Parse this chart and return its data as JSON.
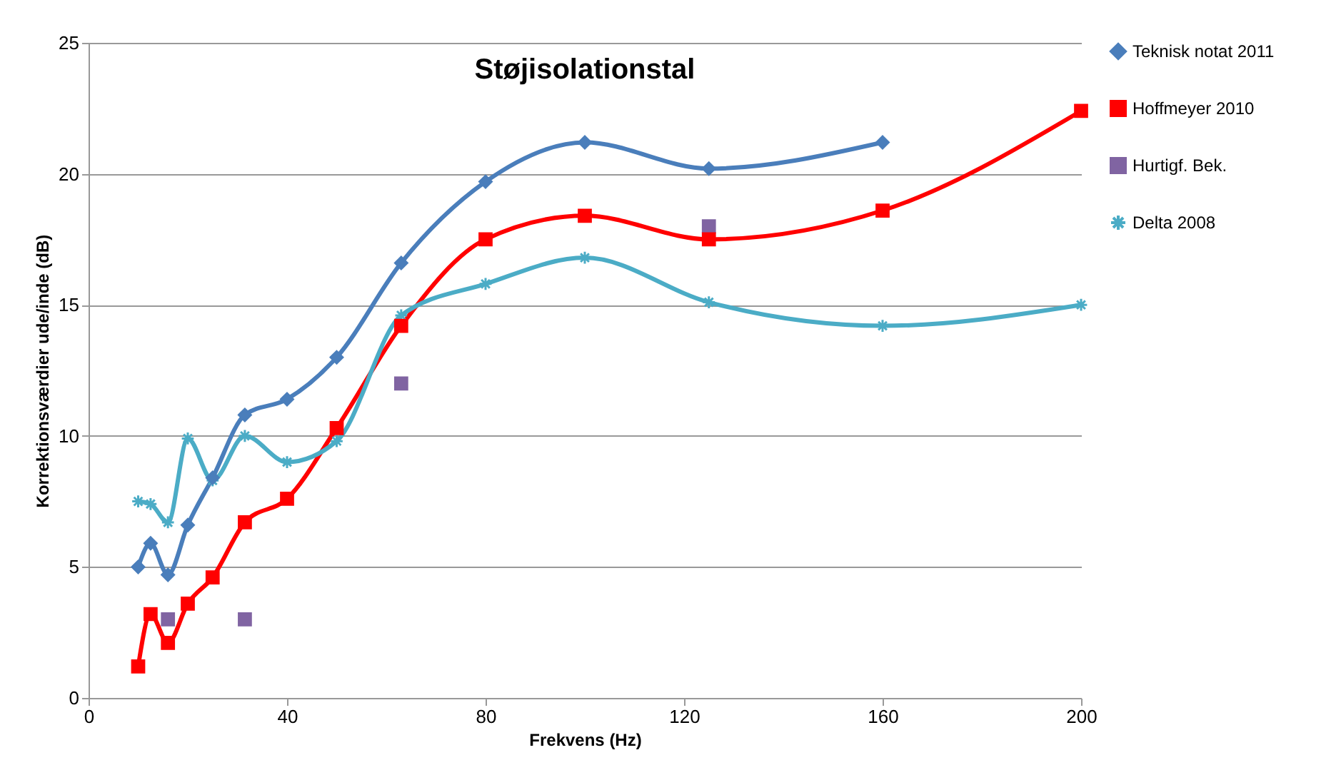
{
  "chart_data": {
    "type": "line",
    "title": "Støjisolationstal",
    "xlabel": "Frekvens (Hz)",
    "ylabel": "Korrektionsværdier ude/inde (dB)",
    "x": [
      10,
      12.5,
      16,
      20,
      25,
      31.5,
      40,
      50,
      63,
      80,
      100,
      125,
      160,
      200
    ],
    "series": [
      {
        "name": "Teknisk notat 2011",
        "color": "#4a7ebb",
        "marker": "diamond",
        "values": [
          5.0,
          5.9,
          4.7,
          6.6,
          8.4,
          10.8,
          11.4,
          13.0,
          16.6,
          19.7,
          21.2,
          20.2,
          21.2,
          null
        ]
      },
      {
        "name": "Hoffmeyer 2010",
        "color": "#ff0000",
        "marker": "square",
        "values": [
          1.2,
          3.2,
          2.1,
          3.6,
          4.6,
          6.7,
          7.6,
          10.3,
          14.2,
          17.5,
          18.4,
          17.5,
          18.6,
          22.4
        ]
      },
      {
        "name": "Hurtigf. Bek.",
        "type": "scatter",
        "color": "#8064a2",
        "marker": "square",
        "values": [
          null,
          null,
          3.0,
          null,
          null,
          3.0,
          null,
          null,
          12.0,
          null,
          null,
          18.0,
          null,
          null
        ]
      },
      {
        "name": "Delta 2008",
        "color": "#4bacc6",
        "marker": "cross",
        "values": [
          7.5,
          7.4,
          6.7,
          9.9,
          8.3,
          10.0,
          9.0,
          9.8,
          14.6,
          15.8,
          16.8,
          15.1,
          14.2,
          15.0
        ]
      }
    ],
    "xlim": [
      0,
      200
    ],
    "xticks": [
      0,
      40,
      80,
      120,
      160,
      200
    ],
    "ylim": [
      0,
      25
    ],
    "yticks": [
      0,
      5,
      10,
      15,
      20,
      25
    ],
    "grid": "y",
    "legend": "right"
  }
}
